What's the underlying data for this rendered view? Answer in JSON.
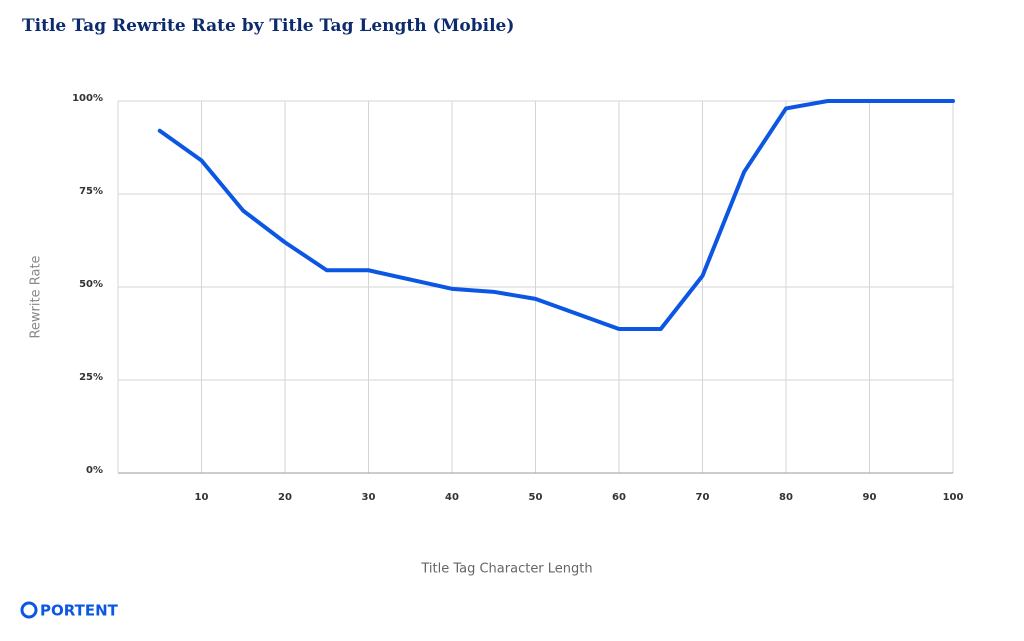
{
  "chart_data": {
    "type": "line",
    "title": "Title Tag Rewrite Rate by Title Tag Length (Mobile)",
    "x_label": "Title Tag Character Length",
    "y_label": "Rewrite Rate",
    "brand": "PORTENT",
    "xlim": [
      0,
      100
    ],
    "xticks": [
      10,
      20,
      30,
      40,
      50,
      60,
      70,
      80,
      90,
      100
    ],
    "ylim": [
      0,
      100
    ],
    "yticks": [
      {
        "value": 0,
        "label": "0%"
      },
      {
        "value": 25,
        "label": "25%"
      },
      {
        "value": 50,
        "label": "50%"
      },
      {
        "value": 75,
        "label": "75%"
      },
      {
        "value": 100,
        "label": "100%"
      }
    ],
    "grid": true,
    "series": [
      {
        "name": "Rewrite Rate",
        "color": "#0b57e3",
        "x": [
          5,
          10,
          15,
          20,
          25,
          30,
          40,
          45,
          50,
          60,
          65,
          70,
          75,
          80,
          85,
          100
        ],
        "values": [
          92,
          84,
          70.5,
          62,
          54.5,
          54.5,
          49.5,
          48.7,
          46.8,
          38.7,
          38.7,
          53,
          81,
          98,
          100,
          100
        ]
      }
    ]
  }
}
